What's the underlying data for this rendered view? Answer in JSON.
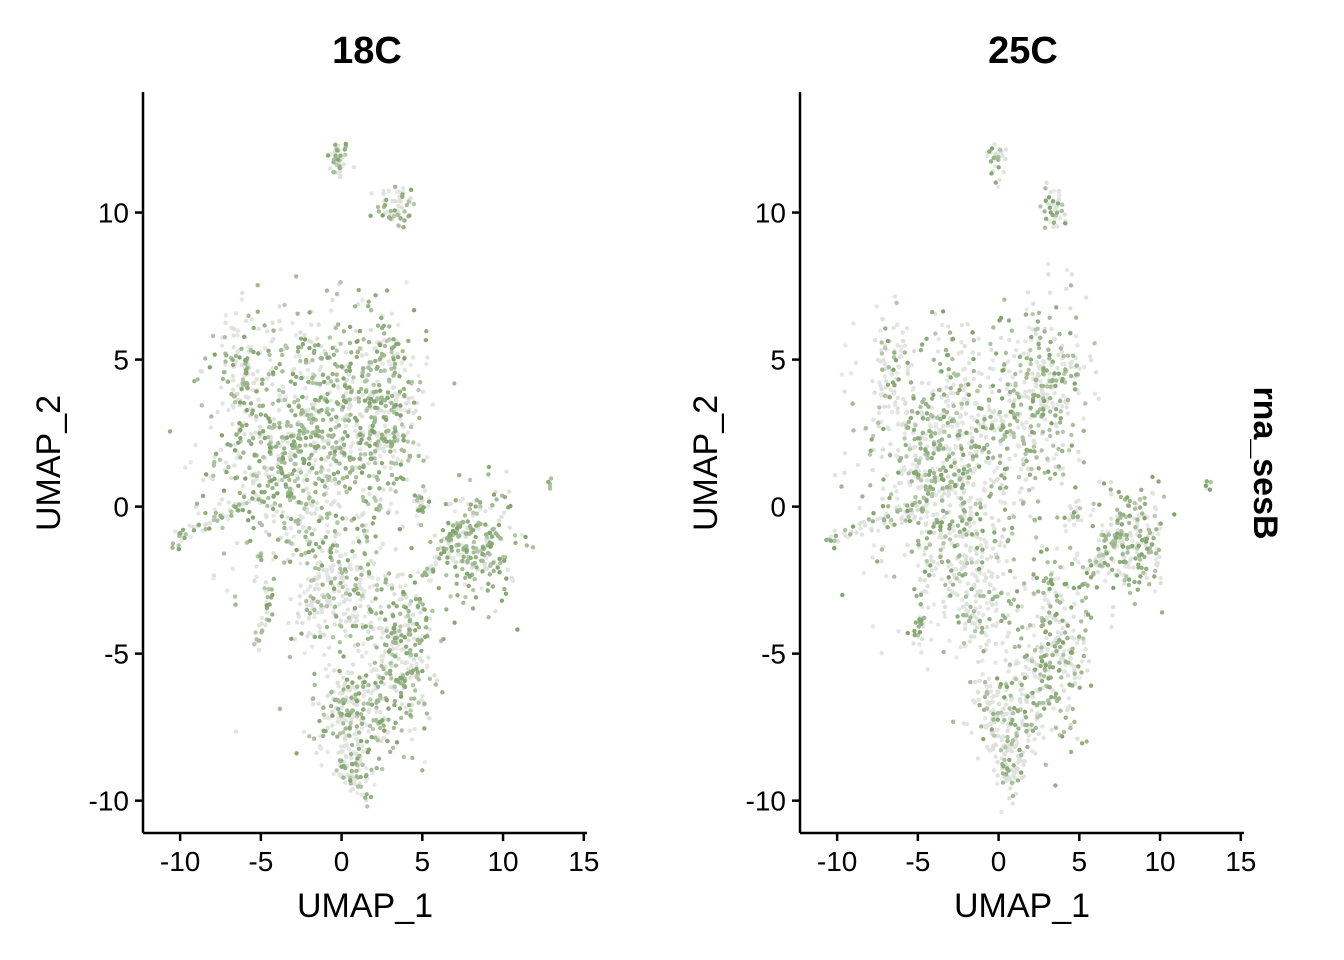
{
  "chart_data": [
    {
      "type": "scatter",
      "title": "18C",
      "xlabel": "UMAP_1",
      "ylabel": "UMAP_2",
      "xlim": [
        -12.3,
        15.2
      ],
      "ylim": [
        -11.1,
        14.1
      ],
      "xticks": [
        -10,
        -5,
        0,
        5,
        10,
        15
      ],
      "yticks": [
        -10,
        -5,
        0,
        5,
        10
      ],
      "point_colors": {
        "low": "#e8e8e8",
        "high": "#7fa46a"
      },
      "clusters": [
        {
          "cx": -0.2,
          "cy": 11.8,
          "sx": 0.35,
          "sy": 0.35,
          "n": 40,
          "expr": 0.5
        },
        {
          "cx": 3.4,
          "cy": 10.2,
          "sx": 0.6,
          "sy": 0.4,
          "n": 55,
          "expr": 0.5
        },
        {
          "cx": -2.5,
          "cy": 2.0,
          "sx": 2.6,
          "sy": 2.3,
          "n": 900,
          "expr": 0.55
        },
        {
          "cx": 2.5,
          "cy": 3.5,
          "sx": 1.4,
          "sy": 1.6,
          "n": 350,
          "expr": 0.6
        },
        {
          "cx": -6.3,
          "cy": 4.5,
          "sx": 0.7,
          "sy": 1.1,
          "n": 90,
          "expr": 0.5
        },
        {
          "cx": 8.4,
          "cy": -1.3,
          "sx": 1.2,
          "sy": 1.0,
          "n": 230,
          "expr": 0.7
        },
        {
          "cx": 3.7,
          "cy": -5.0,
          "sx": 1.0,
          "sy": 1.5,
          "n": 260,
          "expr": 0.6
        },
        {
          "cx": 0.7,
          "cy": -7.0,
          "sx": 1.3,
          "sy": 0.8,
          "n": 220,
          "expr": 0.45
        },
        {
          "cx": 0.9,
          "cy": -8.9,
          "sx": 0.6,
          "sy": 0.5,
          "n": 80,
          "expr": 0.45
        },
        {
          "cx": 0.5,
          "cy": -3.0,
          "sx": 1.8,
          "sy": 1.3,
          "n": 200,
          "expr": 0.35
        },
        {
          "cx": -1.3,
          "cy": -3.3,
          "sx": 0.6,
          "sy": 0.7,
          "n": 70,
          "expr": 0.2
        },
        {
          "cx": 4.9,
          "cy": 0.1,
          "sx": 0.3,
          "sy": 0.3,
          "n": 25,
          "expr": 0.5
        },
        {
          "cx": 12.9,
          "cy": 0.7,
          "sx": 0.12,
          "sy": 0.12,
          "n": 6,
          "expr": 0.5
        }
      ],
      "trails": [
        {
          "from": [
            -10.6,
            -1.2
          ],
          "to": [
            -4.5,
            0.5
          ],
          "n": 60,
          "expr": 0.55
        },
        {
          "from": [
            -5.2,
            -4.9
          ],
          "to": [
            -4.4,
            -2.6
          ],
          "n": 25,
          "expr": 0.5
        },
        {
          "from": [
            5.1,
            -2.5
          ],
          "to": [
            7.5,
            -0.5
          ],
          "n": 45,
          "expr": 0.55
        }
      ]
    },
    {
      "type": "scatter",
      "title": "25C",
      "xlabel": "UMAP_1",
      "ylabel": "UMAP_2",
      "xlim": [
        -12.3,
        15.2
      ],
      "ylim": [
        -11.1,
        14.1
      ],
      "xticks": [
        -10,
        -5,
        0,
        5,
        10,
        15
      ],
      "yticks": [
        -10,
        -5,
        0,
        5,
        10
      ],
      "point_colors": {
        "low": "#e8e8e8",
        "high": "#7fa46a"
      },
      "clusters": [
        {
          "cx": -0.1,
          "cy": 11.8,
          "sx": 0.3,
          "sy": 0.3,
          "n": 30,
          "expr": 0.3
        },
        {
          "cx": 3.4,
          "cy": 10.2,
          "sx": 0.5,
          "sy": 0.4,
          "n": 45,
          "expr": 0.35
        },
        {
          "cx": -3.0,
          "cy": 1.5,
          "sx": 2.4,
          "sy": 2.2,
          "n": 850,
          "expr": 0.4
        },
        {
          "cx": 2.8,
          "cy": 3.8,
          "sx": 1.4,
          "sy": 1.5,
          "n": 330,
          "expr": 0.5
        },
        {
          "cx": -6.5,
          "cy": 4.5,
          "sx": 0.6,
          "sy": 1.0,
          "n": 80,
          "expr": 0.35
        },
        {
          "cx": 8.2,
          "cy": -1.3,
          "sx": 1.2,
          "sy": 1.0,
          "n": 220,
          "expr": 0.55
        },
        {
          "cx": 3.3,
          "cy": -4.8,
          "sx": 1.2,
          "sy": 1.6,
          "n": 280,
          "expr": 0.5
        },
        {
          "cx": 0.5,
          "cy": -7.0,
          "sx": 1.2,
          "sy": 0.8,
          "n": 200,
          "expr": 0.35
        },
        {
          "cx": 0.7,
          "cy": -8.9,
          "sx": 0.5,
          "sy": 0.5,
          "n": 70,
          "expr": 0.25
        },
        {
          "cx": -1.5,
          "cy": -2.9,
          "sx": 1.2,
          "sy": 1.2,
          "n": 180,
          "expr": 0.25
        },
        {
          "cx": 4.7,
          "cy": -0.3,
          "sx": 0.3,
          "sy": 0.3,
          "n": 25,
          "expr": 0.4
        },
        {
          "cx": 13.0,
          "cy": 0.7,
          "sx": 0.12,
          "sy": 0.12,
          "n": 6,
          "expr": 0.5
        }
      ],
      "trails": [
        {
          "from": [
            -10.6,
            -1.2
          ],
          "to": [
            -4.5,
            0.2
          ],
          "n": 60,
          "expr": 0.45
        },
        {
          "from": [
            -5.2,
            -4.9
          ],
          "to": [
            -4.4,
            -2.6
          ],
          "n": 25,
          "expr": 0.45
        },
        {
          "from": [
            5.0,
            -2.8
          ],
          "to": [
            7.5,
            -0.8
          ],
          "n": 45,
          "expr": 0.45
        }
      ]
    }
  ],
  "side_label": "rna_sesB"
}
